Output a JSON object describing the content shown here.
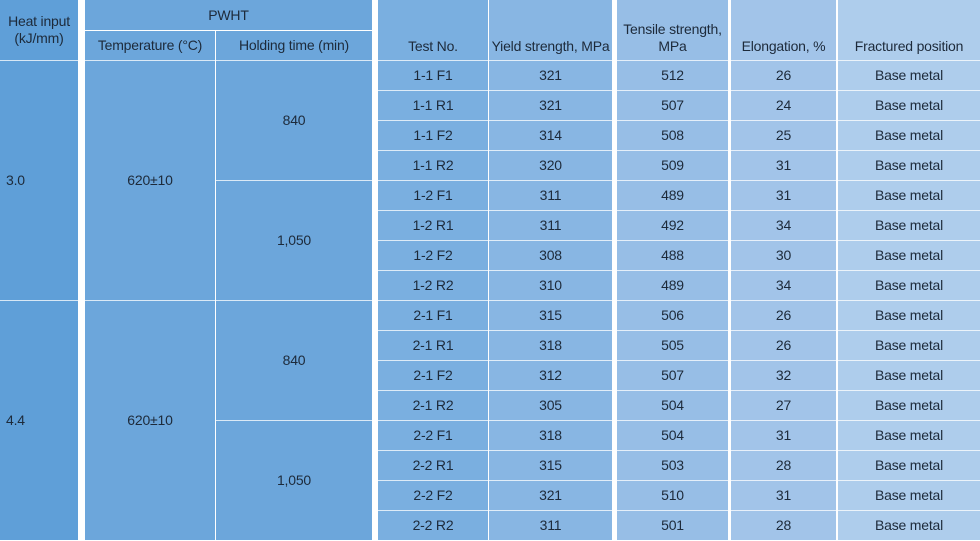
{
  "header": {
    "heat_input": "Heat input (kJ/mm)",
    "pwht": "PWHT",
    "temperature": "Temperature (°C)",
    "holding_time": "Holding time (min)",
    "test_no": "Test No.",
    "yield": "Yield strength, MPa",
    "tensile": "Tensile strength, MPa",
    "elongation": "Elongation, %",
    "fractured": "Fractured position"
  },
  "colors": {
    "heat": "#5f9fd8",
    "pwht": "#6ca6db",
    "test": "#7aafe0",
    "yield": "#88b6e3",
    "tensile": "#97bee6",
    "elong": "#a2c4e9",
    "fract": "#aecdec"
  },
  "groups": [
    {
      "heat_input": "3.0",
      "temperature": "620±10",
      "holding": [
        {
          "time": "840",
          "rows": [
            {
              "test": "1-1 F1",
              "yield": "321",
              "tensile": "512",
              "elong": "26",
              "fract": "Base metal"
            },
            {
              "test": "1-1 R1",
              "yield": "321",
              "tensile": "507",
              "elong": "24",
              "fract": "Base metal"
            },
            {
              "test": "1-1 F2",
              "yield": "314",
              "tensile": "508",
              "elong": "25",
              "fract": "Base metal"
            },
            {
              "test": "1-1 R2",
              "yield": "320",
              "tensile": "509",
              "elong": "31",
              "fract": "Base metal"
            }
          ]
        },
        {
          "time": "1,050",
          "rows": [
            {
              "test": "1-2 F1",
              "yield": "311",
              "tensile": "489",
              "elong": "31",
              "fract": "Base metal"
            },
            {
              "test": "1-2 R1",
              "yield": "311",
              "tensile": "492",
              "elong": "34",
              "fract": "Base metal"
            },
            {
              "test": "1-2 F2",
              "yield": "308",
              "tensile": "488",
              "elong": "30",
              "fract": "Base metal"
            },
            {
              "test": "1-2 R2",
              "yield": "310",
              "tensile": "489",
              "elong": "34",
              "fract": "Base metal"
            }
          ]
        }
      ]
    },
    {
      "heat_input": "4.4",
      "temperature": "620±10",
      "holding": [
        {
          "time": "840",
          "rows": [
            {
              "test": "2-1 F1",
              "yield": "315",
              "tensile": "506",
              "elong": "26",
              "fract": "Base metal"
            },
            {
              "test": "2-1 R1",
              "yield": "318",
              "tensile": "505",
              "elong": "26",
              "fract": "Base metal"
            },
            {
              "test": "2-1 F2",
              "yield": "312",
              "tensile": "507",
              "elong": "32",
              "fract": "Base metal"
            },
            {
              "test": "2-1 R2",
              "yield": "305",
              "tensile": "504",
              "elong": "27",
              "fract": "Base metal"
            }
          ]
        },
        {
          "time": "1,050",
          "rows": [
            {
              "test": "2-2 F1",
              "yield": "318",
              "tensile": "504",
              "elong": "31",
              "fract": "Base metal"
            },
            {
              "test": "2-2 R1",
              "yield": "315",
              "tensile": "503",
              "elong": "28",
              "fract": "Base metal"
            },
            {
              "test": "2-2 F2",
              "yield": "321",
              "tensile": "510",
              "elong": "31",
              "fract": "Base metal"
            },
            {
              "test": "2-2 R2",
              "yield": "311",
              "tensile": "501",
              "elong": "28",
              "fract": "Base metal"
            }
          ]
        }
      ]
    }
  ]
}
